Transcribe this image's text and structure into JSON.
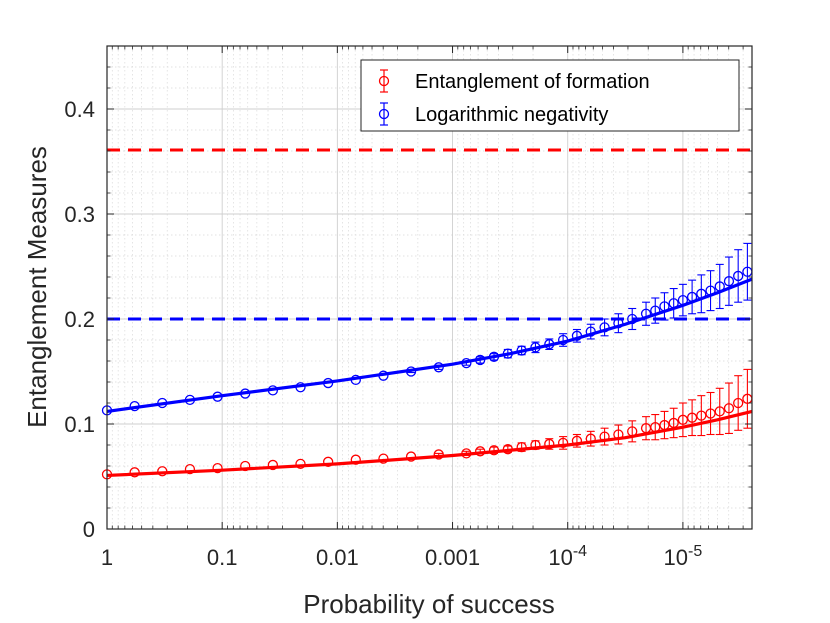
{
  "chart_data": {
    "type": "scatter",
    "title": "",
    "xlabel": "Probability of success",
    "ylabel": "Entanglement Measures",
    "x_scale": "log-reversed",
    "xlim_log10": [
      0,
      -5.6
    ],
    "ylim": [
      0,
      0.46
    ],
    "grid": true,
    "legend_position": "top-right",
    "x_ticks": [
      {
        "log10": 0,
        "label": "1",
        "sup": ""
      },
      {
        "log10": -1,
        "label": "0.1",
        "sup": ""
      },
      {
        "log10": -2,
        "label": "0.01",
        "sup": ""
      },
      {
        "log10": -3,
        "label": "0.001",
        "sup": ""
      },
      {
        "log10": -4,
        "label": "10",
        "sup": "-4"
      },
      {
        "log10": -5,
        "label": "10",
        "sup": "-5"
      }
    ],
    "y_ticks": [
      {
        "value": 0,
        "label": "0"
      },
      {
        "value": 0.1,
        "label": "0.1"
      },
      {
        "value": 0.2,
        "label": "0.2"
      },
      {
        "value": 0.3,
        "label": "0.3"
      },
      {
        "value": 0.4,
        "label": "0.4"
      }
    ],
    "reference_lines": [
      {
        "series": "Entanglement of formation",
        "value": 0.361,
        "color": "#ff0000",
        "style": "dashed"
      },
      {
        "series": "Logarithmic negativity",
        "value": 0.2,
        "color": "#0000ff",
        "style": "dashed"
      }
    ],
    "series": [
      {
        "name": "Entanglement of formation",
        "color": "#ff0000",
        "marker": "circle",
        "x_log10": [
          0,
          -0.24,
          -0.48,
          -0.72,
          -0.96,
          -1.2,
          -1.44,
          -1.68,
          -1.92,
          -2.16,
          -2.4,
          -2.64,
          -2.88,
          -3.12,
          -3.24,
          -3.36,
          -3.48,
          -3.6,
          -3.72,
          -3.84,
          -3.96,
          -4.08,
          -4.2,
          -4.32,
          -4.44,
          -4.56,
          -4.68,
          -4.76,
          -4.84,
          -4.92,
          -5.0,
          -5.08,
          -5.16,
          -5.24,
          -5.32,
          -5.4,
          -5.48,
          -5.56
        ],
        "values": [
          0.052,
          0.054,
          0.055,
          0.057,
          0.058,
          0.06,
          0.061,
          0.062,
          0.064,
          0.066,
          0.067,
          0.069,
          0.071,
          0.072,
          0.074,
          0.075,
          0.076,
          0.078,
          0.08,
          0.081,
          0.082,
          0.084,
          0.086,
          0.088,
          0.09,
          0.093,
          0.096,
          0.097,
          0.099,
          0.101,
          0.104,
          0.106,
          0.108,
          0.11,
          0.112,
          0.115,
          0.12,
          0.124
        ],
        "errors": [
          0,
          0,
          0,
          0,
          0,
          0,
          0,
          0,
          0,
          0,
          0,
          0,
          0.001,
          0.002,
          0.002,
          0.003,
          0.003,
          0.004,
          0.004,
          0.005,
          0.006,
          0.006,
          0.007,
          0.008,
          0.009,
          0.01,
          0.011,
          0.012,
          0.013,
          0.014,
          0.016,
          0.017,
          0.019,
          0.02,
          0.022,
          0.024,
          0.026,
          0.028
        ],
        "fit": {
          "x_log10": [
            0,
            -1,
            -2,
            -3,
            -3.5,
            -4,
            -4.5,
            -5,
            -5.3,
            -5.6
          ],
          "values": [
            0.051,
            0.056,
            0.062,
            0.07,
            0.075,
            0.08,
            0.087,
            0.097,
            0.104,
            0.112
          ]
        }
      },
      {
        "name": "Logarithmic negativity",
        "color": "#0000ff",
        "marker": "circle",
        "x_log10": [
          0,
          -0.24,
          -0.48,
          -0.72,
          -0.96,
          -1.2,
          -1.44,
          -1.68,
          -1.92,
          -2.16,
          -2.4,
          -2.64,
          -2.88,
          -3.12,
          -3.24,
          -3.36,
          -3.48,
          -3.6,
          -3.72,
          -3.84,
          -3.96,
          -4.08,
          -4.2,
          -4.32,
          -4.44,
          -4.56,
          -4.68,
          -4.76,
          -4.84,
          -4.92,
          -5.0,
          -5.08,
          -5.16,
          -5.24,
          -5.32,
          -5.4,
          -5.48,
          -5.56
        ],
        "values": [
          0.113,
          0.117,
          0.12,
          0.123,
          0.126,
          0.129,
          0.132,
          0.135,
          0.139,
          0.142,
          0.146,
          0.15,
          0.154,
          0.158,
          0.161,
          0.164,
          0.167,
          0.17,
          0.173,
          0.176,
          0.18,
          0.184,
          0.188,
          0.192,
          0.196,
          0.2,
          0.205,
          0.208,
          0.212,
          0.215,
          0.218,
          0.221,
          0.224,
          0.227,
          0.231,
          0.236,
          0.241,
          0.245
        ],
        "errors": [
          0,
          0,
          0,
          0,
          0,
          0,
          0,
          0,
          0,
          0,
          0,
          0.001,
          0.002,
          0.002,
          0.003,
          0.003,
          0.004,
          0.004,
          0.005,
          0.005,
          0.006,
          0.006,
          0.007,
          0.008,
          0.009,
          0.01,
          0.011,
          0.012,
          0.013,
          0.014,
          0.015,
          0.016,
          0.018,
          0.019,
          0.021,
          0.023,
          0.025,
          0.027
        ],
        "fit": {
          "x_log10": [
            0,
            -1,
            -2,
            -3,
            -3.5,
            -4,
            -4.5,
            -5,
            -5.3,
            -5.6
          ],
          "values": [
            0.112,
            0.127,
            0.141,
            0.157,
            0.167,
            0.179,
            0.195,
            0.213,
            0.225,
            0.238
          ]
        }
      }
    ]
  }
}
